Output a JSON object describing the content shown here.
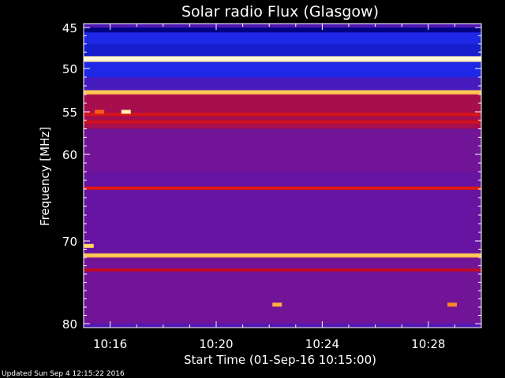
{
  "chart_data": {
    "type": "heatmap",
    "title": "Solar radio Flux (Glasgow)",
    "xlabel": "Start Time (01-Sep-16 10:15:00)",
    "ylabel": "Frequency [MHz]",
    "x_range": [
      "10:15:00",
      "10:30:00"
    ],
    "y_range": [
      45,
      80
    ],
    "y_inverted": true,
    "x_ticks": [
      "10:16",
      "10:20",
      "10:24",
      "10:28"
    ],
    "x_tick_minutes": [
      1,
      5,
      9,
      13
    ],
    "y_ticks": [
      45,
      50,
      55,
      60,
      70,
      80
    ],
    "grid": false,
    "colormap": "black-blue-purple-red-yellow-white",
    "background_bands": [
      {
        "from": 45,
        "to": 45.6,
        "level": 0.12
      },
      {
        "from": 45.6,
        "to": 47.0,
        "level": 0.2
      },
      {
        "from": 47.0,
        "to": 48.5,
        "level": 0.18
      },
      {
        "from": 48.5,
        "to": 49.2,
        "level": 0.95
      },
      {
        "from": 49.2,
        "to": 51.0,
        "level": 0.2
      },
      {
        "from": 51.0,
        "to": 52.5,
        "level": 0.28
      },
      {
        "from": 52.5,
        "to": 53.0,
        "level": 0.85
      },
      {
        "from": 53.0,
        "to": 57.0,
        "level": 0.5
      },
      {
        "from": 57.0,
        "to": 62.0,
        "level": 0.38
      },
      {
        "from": 62.0,
        "to": 71.5,
        "level": 0.35
      },
      {
        "from": 71.5,
        "to": 72.0,
        "level": 0.85
      },
      {
        "from": 72.0,
        "to": 80.0,
        "level": 0.38
      }
    ],
    "emission_lines": [
      {
        "freq": 48.8,
        "level": 0.98
      },
      {
        "freq": 52.7,
        "level": 0.88
      },
      {
        "freq": 55.3,
        "level": 0.62
      },
      {
        "freq": 56.2,
        "level": 0.6
      },
      {
        "freq": 63.9,
        "level": 0.65
      },
      {
        "freq": 71.7,
        "level": 0.88
      },
      {
        "freq": 73.5,
        "level": 0.55
      }
    ],
    "bursts": [
      {
        "minute": 1.6,
        "freq": 55.0,
        "level": 0.95
      },
      {
        "minute": 0.6,
        "freq": 55.0,
        "level": 0.75
      },
      {
        "minute": 7.3,
        "freq": 77.7,
        "level": 0.85
      },
      {
        "minute": 13.9,
        "freq": 77.7,
        "level": 0.8
      },
      {
        "minute": 0.2,
        "freq": 70.6,
        "level": 0.9
      }
    ],
    "footer": "Updated Sun Sep  4 12:15:22 2016"
  }
}
